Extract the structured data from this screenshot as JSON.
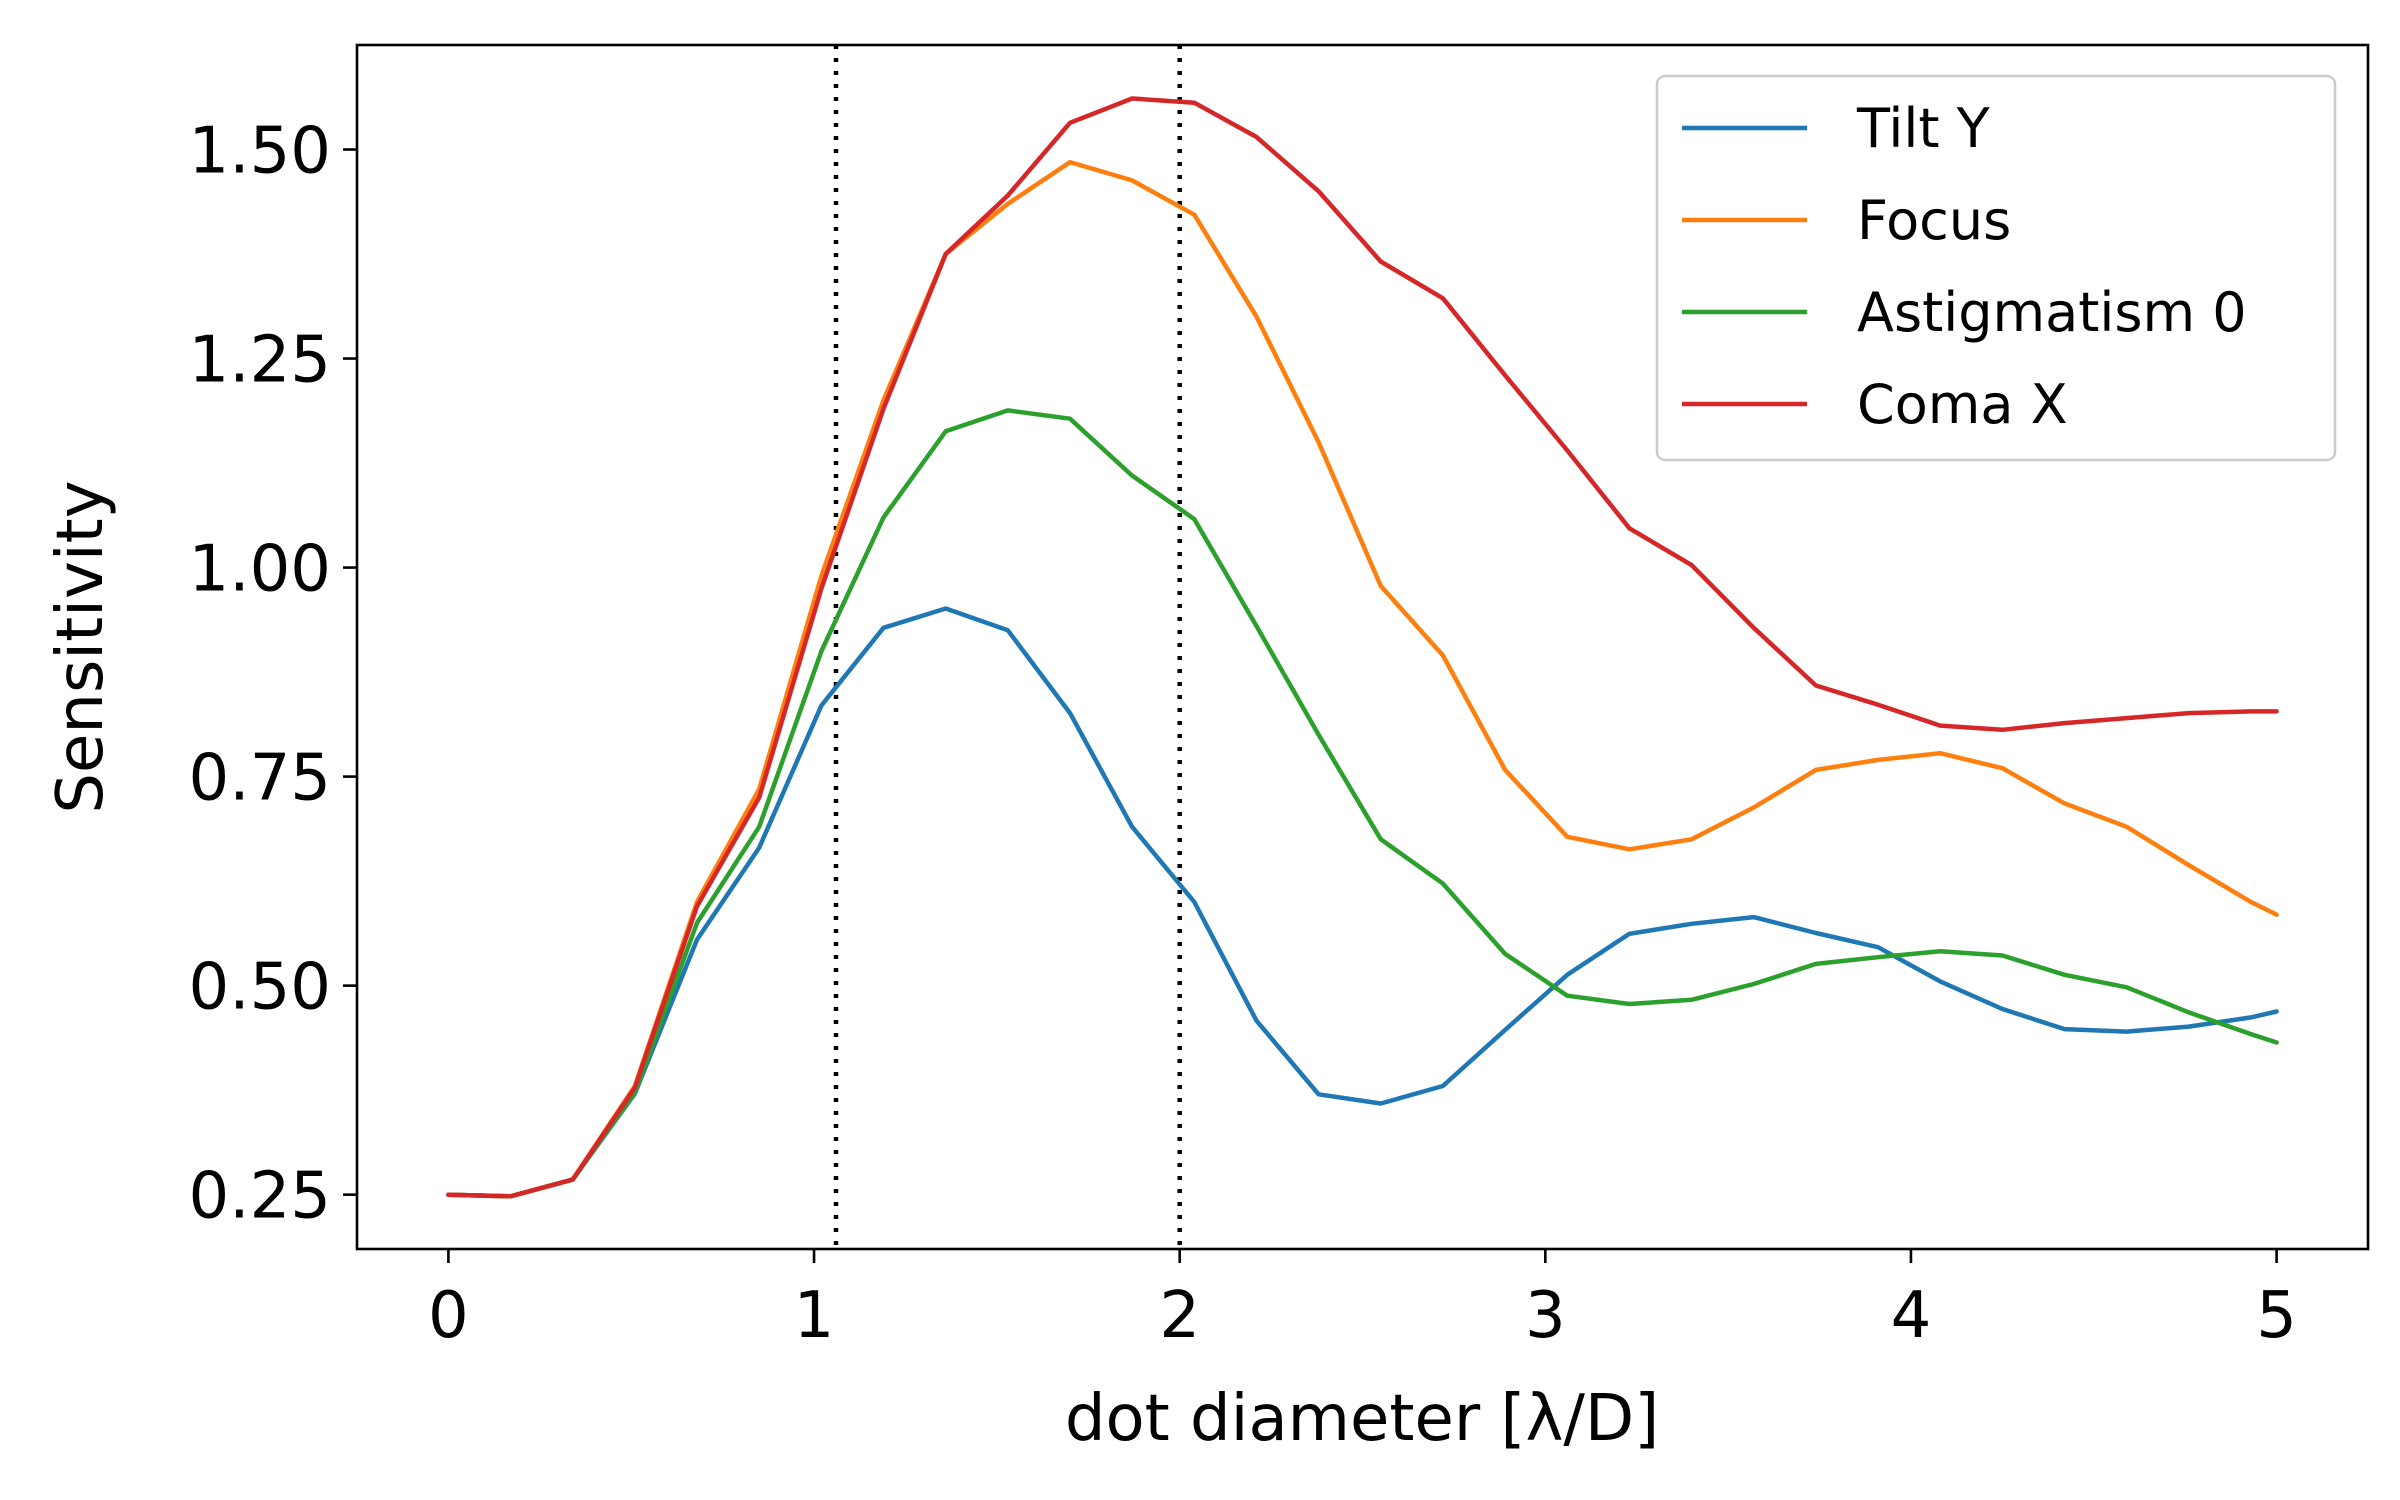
{
  "chart_data": {
    "type": "line",
    "title": "",
    "xlabel": "dot diameter [λ/D]",
    "ylabel": "Sensitivity",
    "xlim": [
      -0.25,
      5.25
    ],
    "ylim": [
      0.185,
      1.625
    ],
    "xticks": [
      0,
      1,
      2,
      3,
      4,
      5
    ],
    "xtick_labels": [
      "0",
      "1",
      "2",
      "3",
      "4",
      "5"
    ],
    "yticks": [
      0.25,
      0.5,
      0.75,
      1.0,
      1.25,
      1.5
    ],
    "ytick_labels": [
      "0.25",
      "0.50",
      "0.75",
      "1.00",
      "1.25",
      "1.50"
    ],
    "grid": false,
    "legend_position": "top-right",
    "vertical_reference_lines": [
      1.06,
      2.0
    ],
    "x": [
      0.0,
      0.17,
      0.34,
      0.51,
      0.68,
      0.85,
      1.02,
      1.19,
      1.36,
      1.53,
      1.7,
      1.87,
      2.04,
      2.21,
      2.38,
      2.55,
      2.72,
      2.89,
      3.06,
      3.23,
      3.4,
      3.57,
      3.74,
      3.91,
      4.08,
      4.25,
      4.42,
      4.59,
      4.76,
      4.93,
      5.0
    ],
    "series": [
      {
        "name": "Tilt Y",
        "color": "#1f77b4",
        "values": [
          0.25,
          0.248,
          0.268,
          0.371,
          0.555,
          0.665,
          0.835,
          0.928,
          0.951,
          0.925,
          0.826,
          0.69,
          0.6,
          0.458,
          0.37,
          0.359,
          0.38,
          0.447,
          0.513,
          0.562,
          0.574,
          0.582,
          0.563,
          0.546,
          0.505,
          0.472,
          0.448,
          0.445,
          0.451,
          0.462,
          0.469
        ]
      },
      {
        "name": "Focus",
        "color": "#ff7f0e",
        "values": [
          0.25,
          0.248,
          0.268,
          0.38,
          0.6,
          0.735,
          0.99,
          1.2,
          1.375,
          1.435,
          1.485,
          1.463,
          1.422,
          1.3,
          1.15,
          0.978,
          0.895,
          0.758,
          0.678,
          0.663,
          0.675,
          0.713,
          0.758,
          0.77,
          0.778,
          0.76,
          0.718,
          0.69,
          0.644,
          0.6,
          0.585
        ]
      },
      {
        "name": "Astigmatism 0",
        "color": "#2ca02c",
        "values": [
          0.25,
          0.248,
          0.268,
          0.372,
          0.575,
          0.69,
          0.9,
          1.06,
          1.163,
          1.188,
          1.178,
          1.11,
          1.058,
          0.93,
          0.8,
          0.675,
          0.622,
          0.538,
          0.488,
          0.478,
          0.483,
          0.502,
          0.526,
          0.534,
          0.541,
          0.536,
          0.513,
          0.498,
          0.468,
          0.442,
          0.432
        ]
      },
      {
        "name": "Coma X",
        "color": "#d62728",
        "values": [
          0.25,
          0.248,
          0.268,
          0.378,
          0.595,
          0.725,
          0.975,
          1.19,
          1.375,
          1.445,
          1.532,
          1.561,
          1.556,
          1.515,
          1.45,
          1.366,
          1.322,
          1.23,
          1.14,
          1.047,
          1.003,
          0.928,
          0.859,
          0.836,
          0.811,
          0.806,
          0.814,
          0.82,
          0.826,
          0.828,
          0.828
        ]
      }
    ]
  }
}
